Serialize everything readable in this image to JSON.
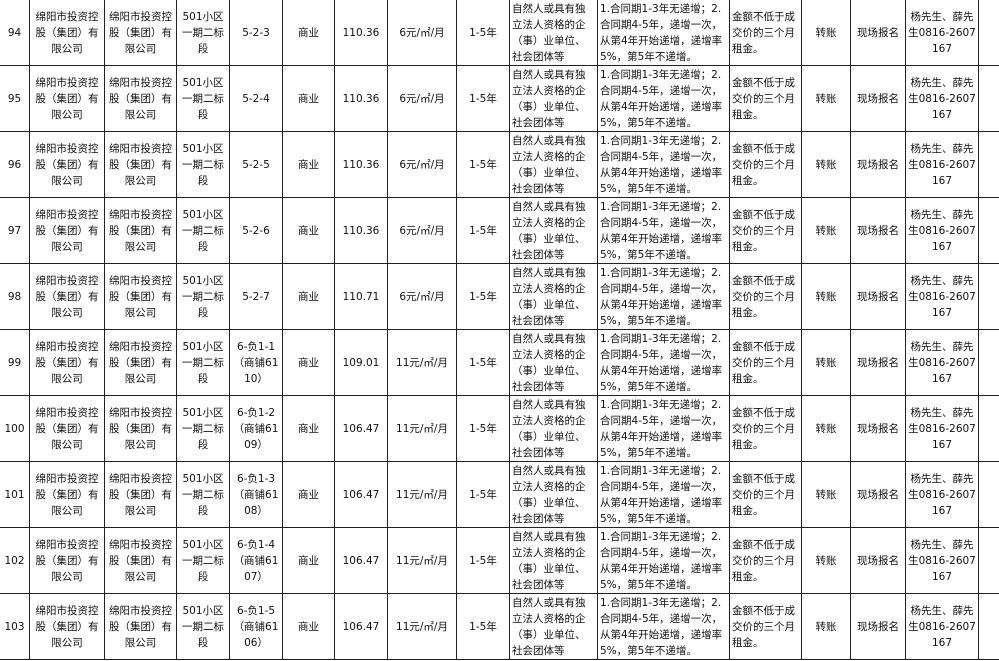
{
  "rows": [
    {
      "no": "94",
      "owner": "绵阳市投资控股（集团）有限公司",
      "owner2": "绵阳市投资控股（集团）有限公司",
      "location": "501小区一期二标段",
      "unit": "5-2-3",
      "use": "商业",
      "area": "110.36",
      "price": "6元/㎡/月",
      "term": "1-5年",
      "qualification": "自然人或具有独立法人资格的企（事）业单位、社会团体等",
      "increment": "1.合同期1-3年无递增；2.合同期4-5年，递增一次，从第4年开始递增，递增率5%，第5年不递增。",
      "deposit": "金额不低于成交价的三个月租金。",
      "payment": "转账",
      "signup": "现场报名",
      "contact": "杨先生、薛先生0816-2607167"
    },
    {
      "no": "95",
      "owner": "绵阳市投资控股（集团）有限公司",
      "owner2": "绵阳市投资控股（集团）有限公司",
      "location": "501小区一期二标段",
      "unit": "5-2-4",
      "use": "商业",
      "area": "110.36",
      "price": "6元/㎡/月",
      "term": "1-5年",
      "qualification": "自然人或具有独立法人资格的企（事）业单位、社会团体等",
      "increment": "1.合同期1-3年无递增；2.合同期4-5年，递增一次，从第4年开始递增，递增率5%，第5年不递增。",
      "deposit": "金额不低于成交价的三个月租金。",
      "payment": "转账",
      "signup": "现场报名",
      "contact": "杨先生、薛先生0816-2607167"
    },
    {
      "no": "96",
      "owner": "绵阳市投资控股（集团）有限公司",
      "owner2": "绵阳市投资控股（集团）有限公司",
      "location": "501小区一期二标段",
      "unit": "5-2-5",
      "use": "商业",
      "area": "110.36",
      "price": "6元/㎡/月",
      "term": "1-5年",
      "qualification": "自然人或具有独立法人资格的企（事）业单位、社会团体等",
      "increment": "1.合同期1-3年无递增；2.合同期4-5年，递增一次，从第4年开始递增，递增率5%，第5年不递增。",
      "deposit": "金额不低于成交价的三个月租金。",
      "payment": "转账",
      "signup": "现场报名",
      "contact": "杨先生、薛先生0816-2607167"
    },
    {
      "no": "97",
      "owner": "绵阳市投资控股（集团）有限公司",
      "owner2": "绵阳市投资控股（集团）有限公司",
      "location": "501小区一期二标段",
      "unit": "5-2-6",
      "use": "商业",
      "area": "110.36",
      "price": "6元/㎡/月",
      "term": "1-5年",
      "qualification": "自然人或具有独立法人资格的企（事）业单位、社会团体等",
      "increment": "1.合同期1-3年无递增；2.合同期4-5年，递增一次，从第4年开始递增，递增率5%，第5年不递增。",
      "deposit": "金额不低于成交价的三个月租金。",
      "payment": "转账",
      "signup": "现场报名",
      "contact": "杨先生、薛先生0816-2607167"
    },
    {
      "no": "98",
      "owner": "绵阳市投资控股（集团）有限公司",
      "owner2": "绵阳市投资控股（集团）有限公司",
      "location": "501小区一期二标段",
      "unit": "5-2-7",
      "use": "商业",
      "area": "110.71",
      "price": "6元/㎡/月",
      "term": "1-5年",
      "qualification": "自然人或具有独立法人资格的企（事）业单位、社会团体等",
      "increment": "1.合同期1-3年无递增；2.合同期4-5年，递增一次，从第4年开始递增，递增率5%，第5年不递增。",
      "deposit": "金额不低于成交价的三个月租金。",
      "payment": "转账",
      "signup": "现场报名",
      "contact": "杨先生、薛先生0816-2607167"
    },
    {
      "no": "99",
      "owner": "绵阳市投资控股（集团）有限公司",
      "owner2": "绵阳市投资控股（集团）有限公司",
      "location": "501小区一期二标段",
      "unit": "6-负1-1（商铺6110）",
      "use": "商业",
      "area": "109.01",
      "price": "11元/㎡/月",
      "term": "1-5年",
      "qualification": "自然人或具有独立法人资格的企（事）业单位、社会团体等",
      "increment": "1.合同期1-3年无递增；2.合同期4-5年，递增一次，从第4年开始递增，递增率5%，第5年不递增。",
      "deposit": "金额不低于成交价的三个月租金。",
      "payment": "转账",
      "signup": "现场报名",
      "contact": "杨先生、薛先生0816-2607167"
    },
    {
      "no": "100",
      "owner": "绵阳市投资控股（集团）有限公司",
      "owner2": "绵阳市投资控股（集团）有限公司",
      "location": "501小区一期二标段",
      "unit": "6-负1-2（商铺6109）",
      "use": "商业",
      "area": "106.47",
      "price": "11元/㎡/月",
      "term": "1-5年",
      "qualification": "自然人或具有独立法人资格的企（事）业单位、社会团体等",
      "increment": "1.合同期1-3年无递增；2.合同期4-5年，递增一次，从第4年开始递增，递增率5%，第5年不递增。",
      "deposit": "金额不低于成交价的三个月租金。",
      "payment": "转账",
      "signup": "现场报名",
      "contact": "杨先生、薛先生0816-2607167"
    },
    {
      "no": "101",
      "owner": "绵阳市投资控股（集团）有限公司",
      "owner2": "绵阳市投资控股（集团）有限公司",
      "location": "501小区一期二标段",
      "unit": "6-负1-3（商铺6108）",
      "use": "商业",
      "area": "106.47",
      "price": "11元/㎡/月",
      "term": "1-5年",
      "qualification": "自然人或具有独立法人资格的企（事）业单位、社会团体等",
      "increment": "1.合同期1-3年无递增；2.合同期4-5年，递增一次，从第4年开始递增，递增率5%，第5年不递增。",
      "deposit": "金额不低于成交价的三个月租金。",
      "payment": "转账",
      "signup": "现场报名",
      "contact": "杨先生、薛先生0816-2607167"
    },
    {
      "no": "102",
      "owner": "绵阳市投资控股（集团）有限公司",
      "owner2": "绵阳市投资控股（集团）有限公司",
      "location": "501小区一期二标段",
      "unit": "6-负1-4（商铺6107）",
      "use": "商业",
      "area": "106.47",
      "price": "11元/㎡/月",
      "term": "1-5年",
      "qualification": "自然人或具有独立法人资格的企（事）业单位、社会团体等",
      "increment": "1.合同期1-3年无递增；2.合同期4-5年，递增一次，从第4年开始递增，递增率5%，第5年不递增。",
      "deposit": "金额不低于成交价的三个月租金。",
      "payment": "转账",
      "signup": "现场报名",
      "contact": "杨先生、薛先生0816-2607167"
    },
    {
      "no": "103",
      "owner": "绵阳市投资控股（集团）有限公司",
      "owner2": "绵阳市投资控股（集团）有限公司",
      "location": "501小区一期二标段",
      "unit": "6-负1-5（商铺6106）",
      "use": "商业",
      "area": "106.47",
      "price": "11元/㎡/月",
      "term": "1-5年",
      "qualification": "自然人或具有独立法人资格的企（事）业单位、社会团体等",
      "increment": "1.合同期1-3年无递增；2.合同期4-5年，递增一次，从第4年开始递增，递增率5%，第5年不递增。",
      "deposit": "金额不低于成交价的三个月租金。",
      "payment": "转账",
      "signup": "现场报名",
      "contact": "杨先生、薛先生0816-2607167"
    }
  ]
}
